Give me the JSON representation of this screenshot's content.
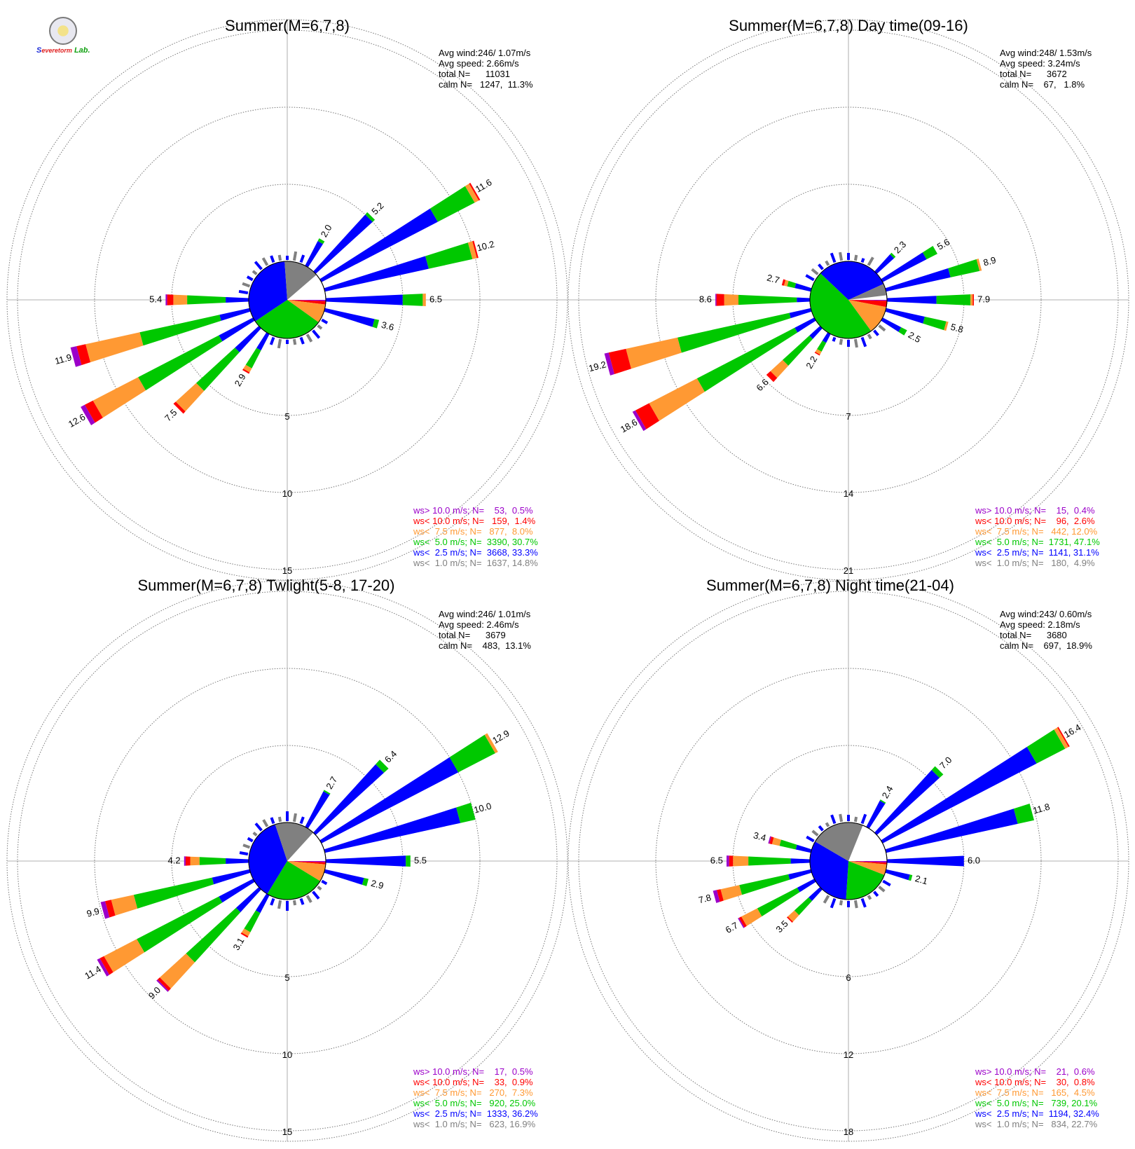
{
  "logo": {
    "s": "S",
    "evere": "evere",
    "torm": "torm",
    "lab": "Lab."
  },
  "legend_colors": {
    "gt10": "#9b00c9",
    "lt10": "#ff0000",
    "lt7_5": "#ff9933",
    "lt5": "#00c800",
    "lt2_5": "#0000ff",
    "lt1": "#808080"
  },
  "chart_data": [
    {
      "type": "wind-rose",
      "title": "Summer(M=6,7,8)",
      "stats": [
        "Avg wind:246/ 1.07m/s",
        "Avg speed: 2.66m/s",
        "total N=      11031",
        "calm N=   1247,  11.3%"
      ],
      "ring_labels": [
        "5",
        "10",
        "15"
      ],
      "ring_values": [
        5,
        10,
        15
      ],
      "pie": [
        14.8,
        33.3,
        30.7,
        8.0,
        1.4,
        0.5
      ],
      "labeled_bars": [
        {
          "dir": 60,
          "total": 11.6,
          "parts": [
            0,
            8.5,
            2.7,
            0.3,
            0.1,
            0
          ]
        },
        {
          "dir": 45,
          "total": 5.2,
          "parts": [
            0,
            5.0,
            0.2,
            0,
            0,
            0
          ]
        },
        {
          "dir": 30,
          "total": 2.0,
          "parts": [
            0,
            1.8,
            0.2,
            0,
            0,
            0
          ]
        },
        {
          "dir": 75,
          "total": 10.2,
          "parts": [
            0,
            6.9,
            2.9,
            0.3,
            0.1,
            0
          ]
        },
        {
          "dir": 90,
          "total": 6.5,
          "parts": [
            0,
            5.0,
            1.3,
            0.2,
            0,
            0
          ]
        },
        {
          "dir": 105,
          "total": 3.6,
          "parts": [
            0,
            3.3,
            0.3,
            0,
            0,
            0
          ]
        },
        {
          "dir": 270,
          "total": 5.4,
          "parts": [
            0,
            1.5,
            2.5,
            0.9,
            0.4,
            0.1
          ]
        },
        {
          "dir": 255,
          "total": 11.9,
          "parts": [
            0,
            2.0,
            5.3,
            3.6,
            0.6,
            0.4
          ]
        },
        {
          "dir": 240,
          "total": 12.6,
          "parts": [
            0,
            2.5,
            5.9,
            3.3,
            0.6,
            0.3
          ]
        },
        {
          "dir": 225,
          "total": 7.5,
          "parts": [
            0,
            2.1,
            3.4,
            1.8,
            0.2,
            0
          ]
        },
        {
          "dir": 210,
          "total": 2.9,
          "parts": [
            0,
            1.2,
            1.3,
            0.3,
            0.1,
            0
          ]
        }
      ],
      "legend": [
        "ws> 10.0 m/s; N=    53,  0.5%",
        "ws< 10.0 m/s; N=   159,  1.4%",
        "ws<  7.5 m/s; N=   877,  8.0%",
        "ws<  5.0 m/s; N=  3390, 30.7%",
        "ws<  2.5 m/s; N=  3668, 33.3%",
        "ws<  1.0 m/s; N=  1637, 14.8%"
      ]
    },
    {
      "type": "wind-rose",
      "title": "Summer(M=6,7,8) Day time(09-16)",
      "stats": [
        "Avg wind:248/ 1.53m/s",
        "Avg speed: 3.24m/s",
        "total N=      3672",
        "calm N=    67,   1.8%"
      ],
      "ring_labels": [
        "7",
        "14",
        "21"
      ],
      "ring_values": [
        7,
        14,
        21
      ],
      "pie": [
        4.9,
        31.1,
        47.1,
        12.0,
        2.6,
        0.4
      ],
      "labeled_bars": [
        {
          "dir": 45,
          "total": 2.3,
          "parts": [
            0,
            2.1,
            0.2,
            0,
            0,
            0
          ]
        },
        {
          "dir": 60,
          "total": 5.6,
          "parts": [
            0,
            4.5,
            1.1,
            0,
            0,
            0
          ]
        },
        {
          "dir": 75,
          "total": 8.9,
          "parts": [
            0,
            6.0,
            2.7,
            0.2,
            0,
            0
          ]
        },
        {
          "dir": 90,
          "total": 7.9,
          "parts": [
            0,
            4.5,
            3.1,
            0.2,
            0.1,
            0
          ]
        },
        {
          "dir": 105,
          "total": 5.8,
          "parts": [
            0,
            3.6,
            2.0,
            0.2,
            0,
            0
          ]
        },
        {
          "dir": 120,
          "total": 2.5,
          "parts": [
            0,
            1.9,
            0.6,
            0,
            0,
            0
          ]
        },
        {
          "dir": 285,
          "total": 2.7,
          "parts": [
            0,
            1.5,
            0.7,
            0.3,
            0.2,
            0
          ]
        },
        {
          "dir": 270,
          "total": 8.6,
          "parts": [
            0,
            1.2,
            5.3,
            1.3,
            0.7,
            0.1
          ]
        },
        {
          "dir": 255,
          "total": 19.2,
          "parts": [
            0,
            2.0,
            10.4,
            4.8,
            1.6,
            0.4
          ]
        },
        {
          "dir": 240,
          "total": 18.6,
          "parts": [
            0,
            2.0,
            10.0,
            4.9,
            1.4,
            0.3
          ]
        },
        {
          "dir": 225,
          "total": 6.6,
          "parts": [
            0,
            1.3,
            3.3,
            1.5,
            0.5,
            0
          ]
        },
        {
          "dir": 210,
          "total": 2.2,
          "parts": [
            0,
            0.9,
            0.9,
            0.3,
            0.1,
            0
          ]
        }
      ],
      "legend": [
        "ws> 10.0 m/s; N=    15,  0.4%",
        "ws< 10.0 m/s; N=    96,  2.6%",
        "ws<  7.5 m/s; N=   442, 12.0%",
        "ws<  5.0 m/s; N=  1731, 47.1%",
        "ws<  2.5 m/s; N=  1141, 31.1%",
        "ws<  1.0 m/s; N=   180,  4.9%"
      ]
    },
    {
      "type": "wind-rose",
      "title": "Summer(M=6,7,8) Twlight(5-8, 17-20)",
      "stats": [
        "Avg wind:246/ 1.01m/s",
        "Avg speed: 2.46m/s",
        "total N=      3679",
        "calm N=    483,  13.1%"
      ],
      "ring_labels": [
        "5",
        "10",
        "15"
      ],
      "ring_values": [
        5,
        10,
        15
      ],
      "pie": [
        16.9,
        36.2,
        25.0,
        7.3,
        0.9,
        0.5
      ],
      "labeled_bars": [
        {
          "dir": 60,
          "total": 12.9,
          "parts": [
            0,
            10.0,
            2.7,
            0.2,
            0,
            0
          ]
        },
        {
          "dir": 45,
          "total": 6.4,
          "parts": [
            0,
            6.0,
            0.4,
            0,
            0,
            0
          ]
        },
        {
          "dir": 30,
          "total": 2.7,
          "parts": [
            0,
            2.6,
            0.1,
            0,
            0,
            0
          ]
        },
        {
          "dir": 75,
          "total": 10.0,
          "parts": [
            0,
            9.0,
            1.0,
            0,
            0,
            0
          ]
        },
        {
          "dir": 90,
          "total": 5.5,
          "parts": [
            0,
            5.2,
            0.3,
            0,
            0,
            0
          ]
        },
        {
          "dir": 105,
          "total": 2.9,
          "parts": [
            0,
            2.6,
            0.3,
            0,
            0,
            0
          ]
        },
        {
          "dir": 270,
          "total": 4.2,
          "parts": [
            0,
            1.5,
            1.7,
            0.6,
            0.3,
            0.1
          ]
        },
        {
          "dir": 255,
          "total": 9.9,
          "parts": [
            0,
            2.5,
            5.2,
            1.5,
            0.4,
            0.3
          ]
        },
        {
          "dir": 240,
          "total": 11.4,
          "parts": [
            0,
            2.5,
            6.0,
            2.4,
            0.3,
            0.2
          ]
        },
        {
          "dir": 225,
          "total": 9.0,
          "parts": [
            0,
            2.0,
            4.4,
            2.3,
            0.2,
            0.1
          ]
        },
        {
          "dir": 210,
          "total": 3.1,
          "parts": [
            0,
            1.3,
            1.4,
            0.3,
            0.1,
            0
          ]
        }
      ],
      "legend": [
        "ws> 10.0 m/s; N=    17,  0.5%",
        "ws< 10.0 m/s; N=    33,  0.9%",
        "ws<  7.5 m/s; N=   270,  7.3%",
        "ws<  5.0 m/s; N=   920, 25.0%",
        "ws<  2.5 m/s; N=  1333, 36.2%",
        "ws<  1.0 m/s; N=   623, 16.9%"
      ]
    },
    {
      "type": "wind-rose",
      "title": "Summer(M=6,7,8) Night time(21-04)",
      "stats": [
        "Avg wind:243/ 0.60m/s",
        "Avg speed: 2.18m/s",
        "total N=      3680",
        "calm N=    697,  18.9%"
      ],
      "ring_labels": [
        "6",
        "12",
        "18"
      ],
      "ring_values": [
        6,
        12,
        18
      ],
      "pie": [
        22.7,
        32.4,
        20.1,
        4.5,
        0.8,
        0.6
      ],
      "labeled_bars": [
        {
          "dir": 60,
          "total": 16.4,
          "parts": [
            0,
            13.5,
            2.5,
            0.3,
            0.1,
            0
          ]
        },
        {
          "dir": 45,
          "total": 7.0,
          "parts": [
            0,
            6.6,
            0.4,
            0,
            0,
            0
          ]
        },
        {
          "dir": 30,
          "total": 2.4,
          "parts": [
            0,
            2.3,
            0.1,
            0,
            0,
            0
          ]
        },
        {
          "dir": 75,
          "total": 11.8,
          "parts": [
            0,
            10.5,
            1.3,
            0,
            0,
            0
          ]
        },
        {
          "dir": 90,
          "total": 6.0,
          "parts": [
            0,
            6.0,
            0,
            0,
            0,
            0
          ]
        },
        {
          "dir": 105,
          "total": 2.1,
          "parts": [
            0,
            1.9,
            0.2,
            0,
            0,
            0
          ]
        },
        {
          "dir": 285,
          "total": 3.4,
          "parts": [
            0,
            1.2,
            1.3,
            0.6,
            0.2,
            0.1
          ]
        },
        {
          "dir": 270,
          "total": 6.5,
          "parts": [
            0,
            1.5,
            3.3,
            1.2,
            0.3,
            0.2
          ]
        },
        {
          "dir": 255,
          "total": 7.8,
          "parts": [
            0,
            1.8,
            3.9,
            1.5,
            0.3,
            0.3
          ]
        },
        {
          "dir": 240,
          "total": 6.7,
          "parts": [
            0,
            1.5,
            3.5,
            1.4,
            0.2,
            0.1
          ]
        },
        {
          "dir": 225,
          "total": 3.5,
          "parts": [
            0,
            1.2,
            1.5,
            0.7,
            0.1,
            0
          ]
        }
      ],
      "legend": [
        "ws> 10.0 m/s; N=    21,  0.6%",
        "ws< 10.0 m/s; N=    30,  0.8%",
        "ws<  7.5 m/s; N=   165,  4.5%",
        "ws<  5.0 m/s; N=   739, 20.1%",
        "ws<  2.5 m/s; N=  1194, 32.4%",
        "ws<  1.0 m/s; N=   834, 22.7%"
      ]
    }
  ]
}
